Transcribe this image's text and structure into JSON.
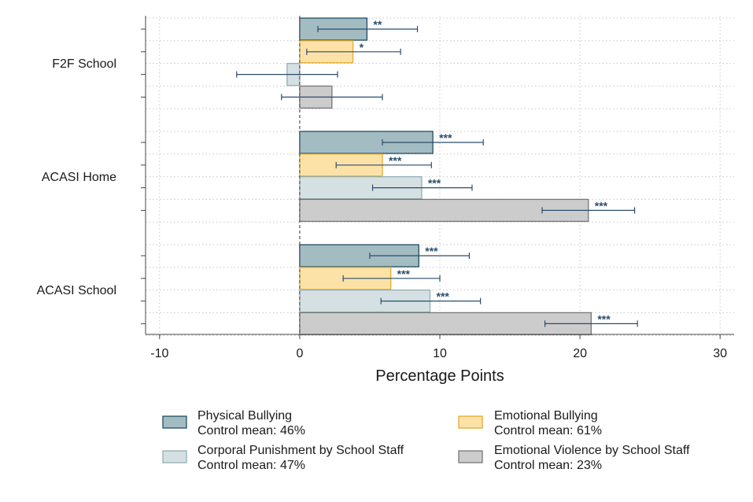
{
  "chart_data": {
    "type": "bar",
    "orientation": "horizontal",
    "xlabel": "Percentage Points",
    "xlim": [
      -11,
      31
    ],
    "xticks": [
      -10,
      0,
      10,
      20,
      30
    ],
    "grid": true,
    "legend_position": "bottom",
    "groups": [
      "F2F School",
      "ACASI Home",
      "ACASI School"
    ],
    "series": [
      {
        "name": "Physical Bullying",
        "control_mean": "Control mean: 46%",
        "fill": "#a3bcc2",
        "stroke": "#1f4f60",
        "values": [
          4.8,
          9.5,
          8.5
        ],
        "ci": [
          [
            1.3,
            8.4
          ],
          [
            5.9,
            13.1
          ],
          [
            5.0,
            12.1
          ]
        ],
        "sig": [
          "**",
          "***",
          "***"
        ]
      },
      {
        "name": "Emotional Bullying",
        "control_mean": "Control mean: 61%",
        "fill": "#fde2a8",
        "stroke": "#e5ab2c",
        "values": [
          3.8,
          5.9,
          6.5
        ],
        "ci": [
          [
            0.5,
            7.2
          ],
          [
            2.6,
            9.4
          ],
          [
            3.1,
            10.0
          ]
        ],
        "sig": [
          "*",
          "***",
          "***"
        ]
      },
      {
        "name": "Corporal Punishment by School Staff",
        "control_mean": "Control mean: 47%",
        "fill": "#d5e0e2",
        "stroke": "#93aeb5",
        "values": [
          -0.9,
          8.7,
          9.3
        ],
        "ci": [
          [
            -4.5,
            2.7
          ],
          [
            5.2,
            12.3
          ],
          [
            5.8,
            12.9
          ]
        ],
        "sig": [
          "",
          "***",
          "***"
        ]
      },
      {
        "name": "Emotional Violence by School Staff",
        "control_mean": "Control mean: 23%",
        "fill": "#cccccc",
        "stroke": "#777777",
        "values": [
          2.3,
          20.6,
          20.8
        ],
        "ci": [
          [
            -1.3,
            5.9
          ],
          [
            17.3,
            23.9
          ],
          [
            17.5,
            24.1
          ]
        ],
        "sig": [
          "",
          "***",
          "***"
        ]
      }
    ]
  }
}
